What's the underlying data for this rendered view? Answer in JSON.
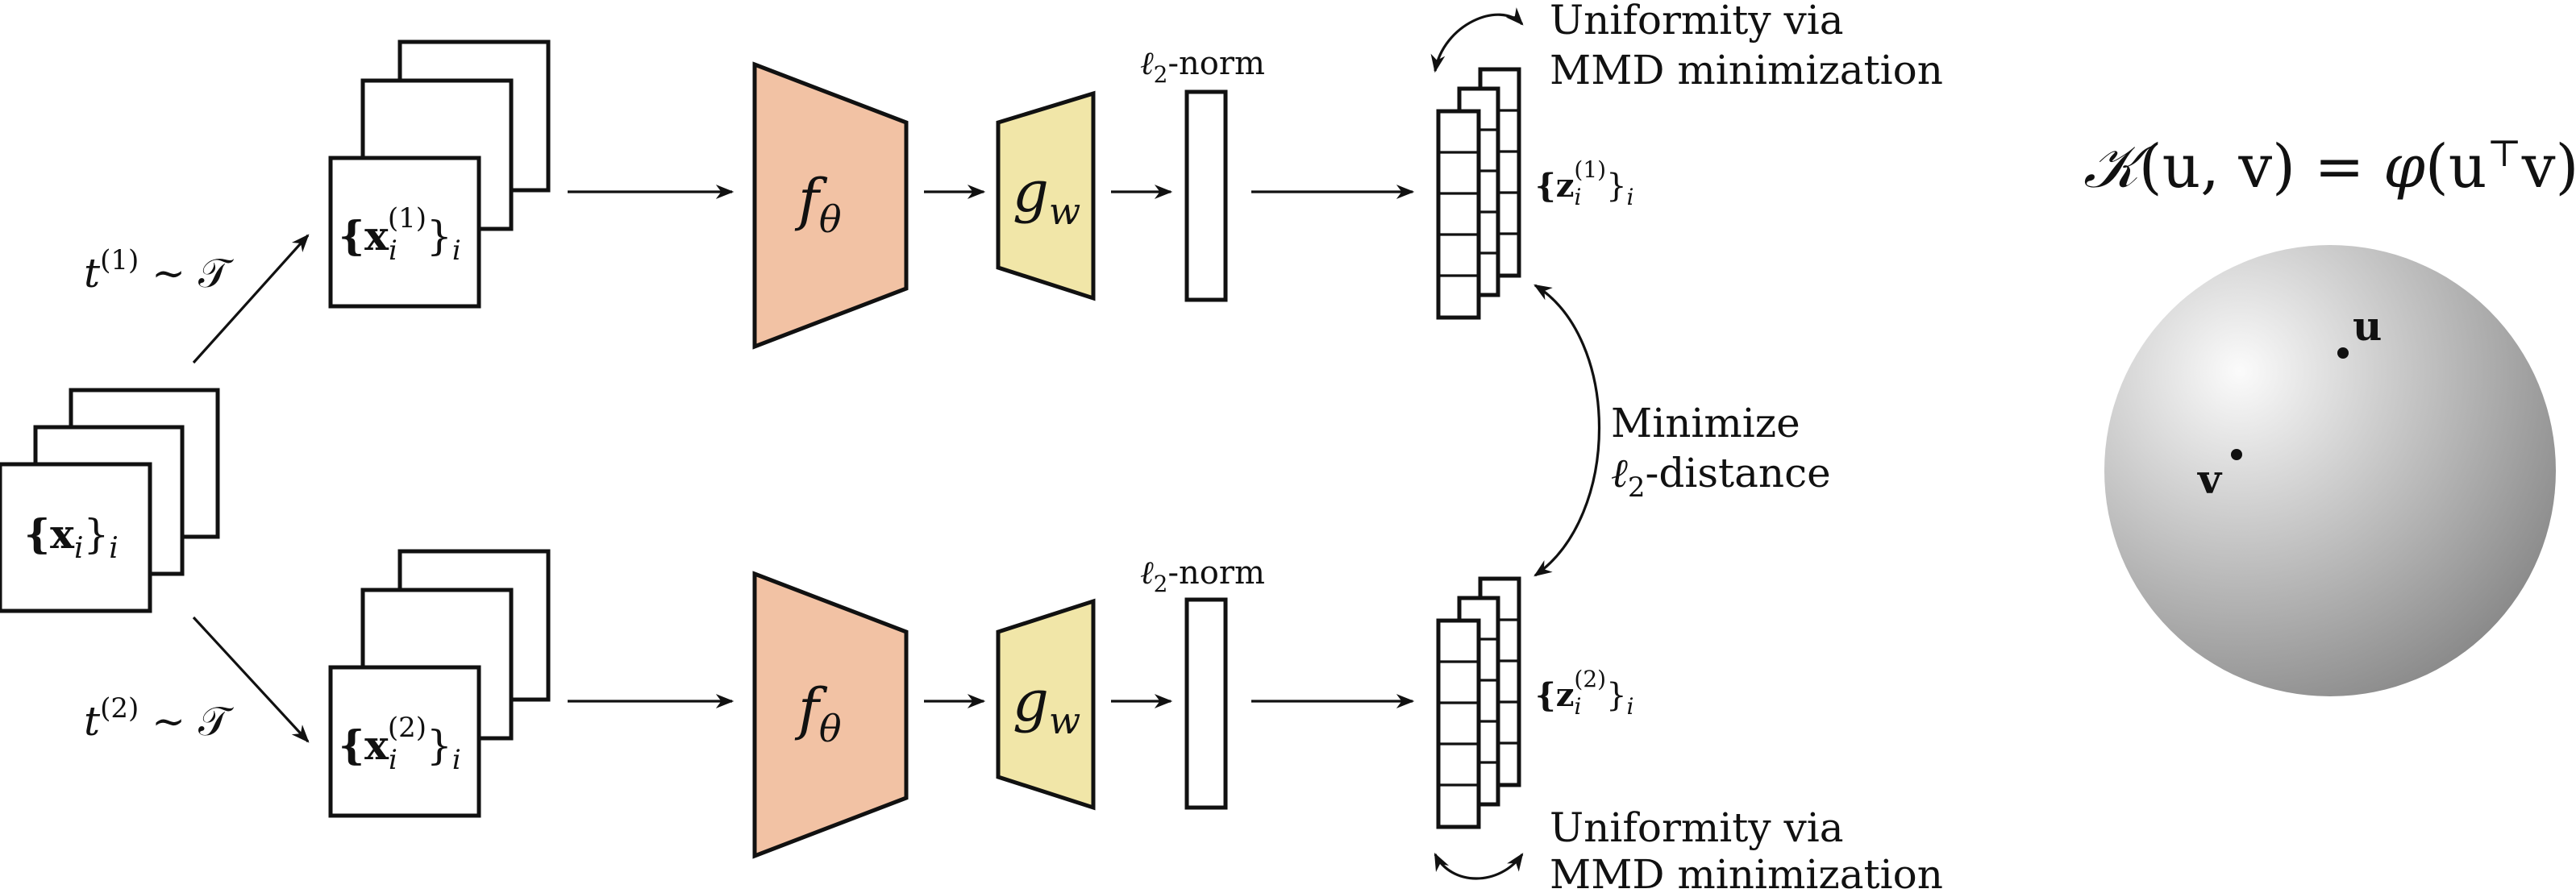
{
  "input": {
    "label_main": "{x",
    "label_sub": "i",
    "label_close": "}",
    "label_index": "i"
  },
  "aug": [
    {
      "t_label": "t",
      "t_sup": "(1)",
      "t_rest": " ∼ 𝒯",
      "x_open": "{x",
      "x_sub": "i",
      "x_sup": "(1)",
      "x_close": "}",
      "x_index": "i"
    },
    {
      "t_label": "t",
      "t_sup": "(2)",
      "t_rest": " ∼ 𝒯",
      "x_open": "{x",
      "x_sub": "i",
      "x_sup": "(2)",
      "x_close": "}",
      "x_index": "i"
    }
  ],
  "encoder": {
    "f_main": "f",
    "f_sub": "θ",
    "g_main": "g",
    "g_sub": "w",
    "fill_f": "#f2c2a4",
    "fill_g": "#f1e6a8"
  },
  "norm": {
    "ell": "ℓ",
    "sub": "2",
    "rest": "-norm"
  },
  "outputs": [
    {
      "open": "{z",
      "sub": "i",
      "sup": "(1)",
      "close": "}",
      "index": "i"
    },
    {
      "open": "{z",
      "sub": "i",
      "sup": "(2)",
      "close": "}",
      "index": "i"
    }
  ],
  "uniformity": {
    "line1": "Uniformity via",
    "line2": "MMD minimization"
  },
  "minimize": {
    "line1": "Minimize",
    "ell": "ℓ",
    "sub": "2",
    "rest": "-distance"
  },
  "kernel": {
    "script": "𝒦",
    "args": "(u, v) = ",
    "phi": "φ",
    "inner_open": "(u",
    "top": "⊤",
    "inner_close": "v)"
  },
  "sphere": {
    "point_u": "u",
    "point_v": "v"
  }
}
